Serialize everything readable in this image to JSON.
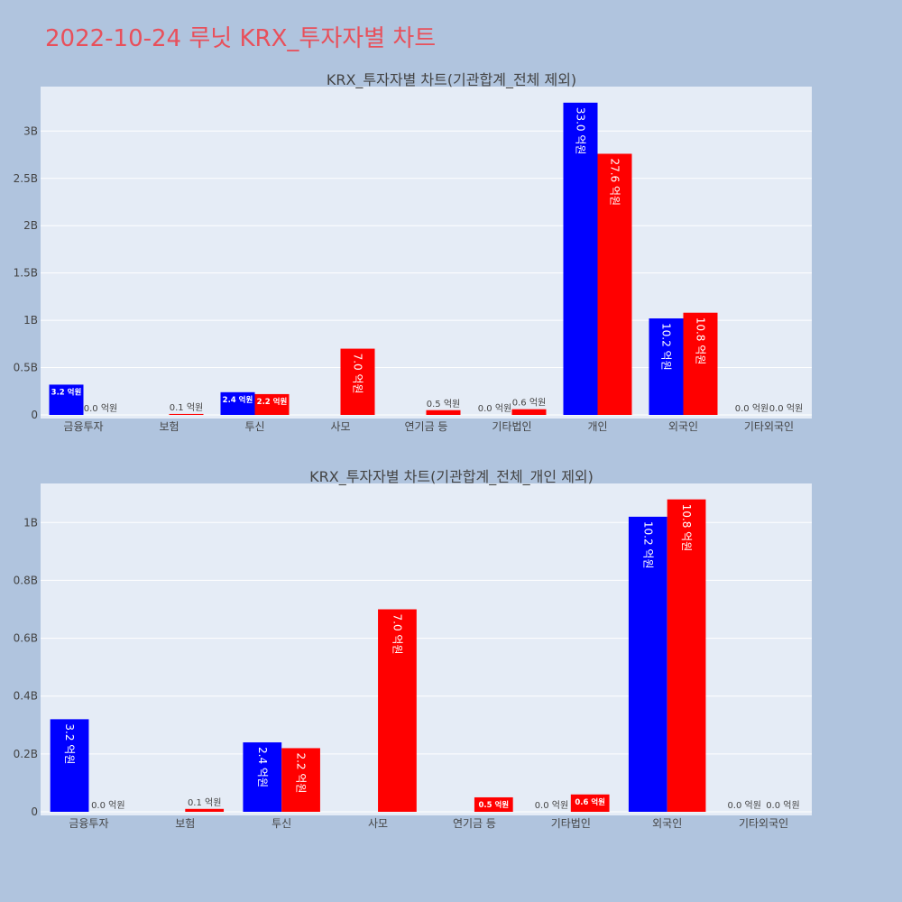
{
  "page": {
    "title": "2022-10-24 루닛 KRX_투자자별 차트"
  },
  "colors": {
    "buy": "#0000ff",
    "sell": "#ff0000",
    "title": "#e8505b",
    "background": "#b0c4de",
    "plot_bg": "#e5ecf6"
  },
  "chart_data": [
    {
      "type": "bar",
      "title": "KRX_투자자별 차트(기관합계_전체 제외)",
      "categories": [
        "금융투자",
        "보험",
        "투신",
        "사모",
        "연기금 등",
        "기타법인",
        "개인",
        "외국인",
        "기타외국인"
      ],
      "series": [
        {
          "color": "blue",
          "values": [
            320000000,
            null,
            240000000,
            null,
            null,
            0,
            3300000000,
            1020000000,
            0
          ],
          "labels": [
            "3.2 억원",
            "",
            "2.4 억원",
            "",
            "",
            "0.0 억원",
            "33.0 억원",
            "10.2 억원",
            "0.0 억원"
          ]
        },
        {
          "color": "red",
          "values": [
            0,
            10000000,
            220000000,
            700000000,
            50000000,
            60000000,
            2760000000,
            1080000000,
            0
          ],
          "labels": [
            "0.0 억원",
            "0.1 억원",
            "2.2 억원",
            "7.0 억원",
            "0.5 억원",
            "0.6 억원",
            "27.6 억원",
            "10.8 억원",
            "0.0 억원"
          ]
        }
      ],
      "yticks": [
        0,
        500000000,
        1000000000,
        1500000000,
        2000000000,
        2500000000,
        3000000000
      ],
      "ytick_labels": [
        "0",
        "0.5B",
        "1B",
        "1.5B",
        "2B",
        "2.5B",
        "3B"
      ],
      "ylim": [
        0,
        3470000000
      ],
      "grid": true,
      "xlabel": "",
      "ylabel": ""
    },
    {
      "type": "bar",
      "title": "KRX_투자자별 차트(기관합계_전체_개인 제외)",
      "categories": [
        "금융투자",
        "보험",
        "투신",
        "사모",
        "연기금 등",
        "기타법인",
        "외국인",
        "기타외국인"
      ],
      "series": [
        {
          "color": "blue",
          "values": [
            320000000,
            null,
            240000000,
            null,
            null,
            0,
            1020000000,
            0
          ],
          "labels": [
            "3.2 억원",
            "",
            "2.4 억원",
            "",
            "",
            "0.0 억원",
            "10.2 억원",
            "0.0 억원"
          ]
        },
        {
          "color": "red",
          "values": [
            0,
            10000000,
            220000000,
            700000000,
            50000000,
            60000000,
            1080000000,
            0
          ],
          "labels": [
            "0.0 억원",
            "0.1 억원",
            "2.2 억원",
            "7.0 억원",
            "0.5 억원",
            "0.6 억원",
            "10.8 억원",
            "0.0 억원"
          ]
        }
      ],
      "yticks": [
        0,
        200000000,
        400000000,
        600000000,
        800000000,
        1000000000
      ],
      "ytick_labels": [
        "0",
        "0.2B",
        "0.4B",
        "0.6B",
        "0.8B",
        "1B"
      ],
      "ylim": [
        0,
        1135000000
      ],
      "grid": true,
      "xlabel": "",
      "ylabel": ""
    }
  ]
}
